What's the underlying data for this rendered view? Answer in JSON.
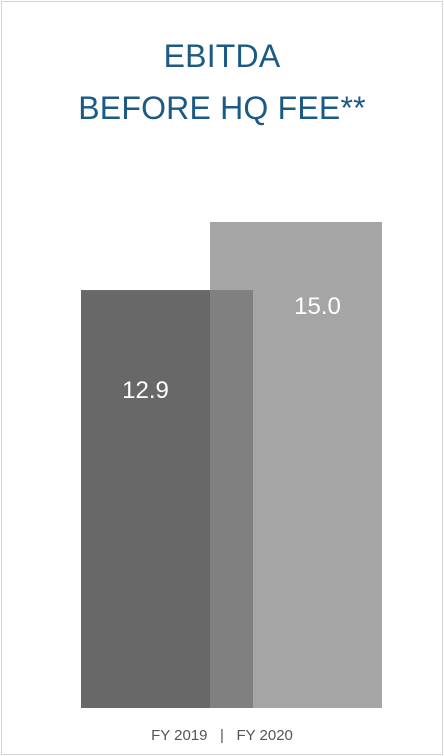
{
  "chart_data": {
    "type": "bar",
    "title_lines": [
      "EBITDA",
      "BEFORE HQ FEE**"
    ],
    "categories": [
      "FY 2019",
      "FY 2020"
    ],
    "values": [
      12.9,
      15.0
    ],
    "value_labels": [
      "12.9",
      "15.0"
    ],
    "x_label_separator": "|",
    "colors": [
      "#686868",
      "#a5a5a5"
    ],
    "overlap_color": "#808080"
  }
}
